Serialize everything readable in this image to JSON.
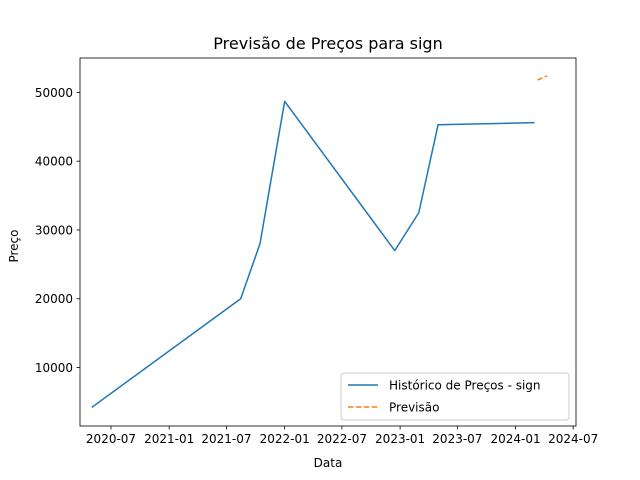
{
  "chart_data": {
    "type": "line",
    "title": "Previsão de Preços para sign",
    "xlabel": "Data",
    "ylabel": "Preço",
    "xlim": [
      "2020-03-25",
      "2024-07-10"
    ],
    "ylim": [
      1500,
      55000
    ],
    "x_ticks": [
      {
        "date": "2020-07-01",
        "label": "2020-07"
      },
      {
        "date": "2021-01-01",
        "label": "2021-01"
      },
      {
        "date": "2021-07-01",
        "label": "2021-07"
      },
      {
        "date": "2022-01-01",
        "label": "2022-01"
      },
      {
        "date": "2022-07-01",
        "label": "2022-07"
      },
      {
        "date": "2023-01-01",
        "label": "2023-01"
      },
      {
        "date": "2023-07-01",
        "label": "2023-07"
      },
      {
        "date": "2024-01-01",
        "label": "2024-01"
      },
      {
        "date": "2024-07-01",
        "label": "2024-07"
      }
    ],
    "y_ticks": [
      {
        "value": 10000,
        "label": "10000"
      },
      {
        "value": 20000,
        "label": "20000"
      },
      {
        "value": 30000,
        "label": "30000"
      },
      {
        "value": 40000,
        "label": "40000"
      },
      {
        "value": 50000,
        "label": "50000"
      }
    ],
    "grid": false,
    "legend_position": "lower-right",
    "series": [
      {
        "name": "Histórico de Preços - sign",
        "color": "#1f77b4",
        "dash": "solid",
        "points": [
          {
            "x": "2020-05-01",
            "y": 4200
          },
          {
            "x": "2021-08-15",
            "y": 20000
          },
          {
            "x": "2021-10-15",
            "y": 28000
          },
          {
            "x": "2022-01-01",
            "y": 48700
          },
          {
            "x": "2022-12-15",
            "y": 27000
          },
          {
            "x": "2023-03-01",
            "y": 32500
          },
          {
            "x": "2023-05-01",
            "y": 45300
          },
          {
            "x": "2024-03-01",
            "y": 45600
          }
        ]
      },
      {
        "name": "Previsão",
        "color": "#ff7f0e",
        "dash": "dashed",
        "points": [
          {
            "x": "2024-03-10",
            "y": 51800
          },
          {
            "x": "2024-04-10",
            "y": 52400
          }
        ]
      }
    ]
  }
}
